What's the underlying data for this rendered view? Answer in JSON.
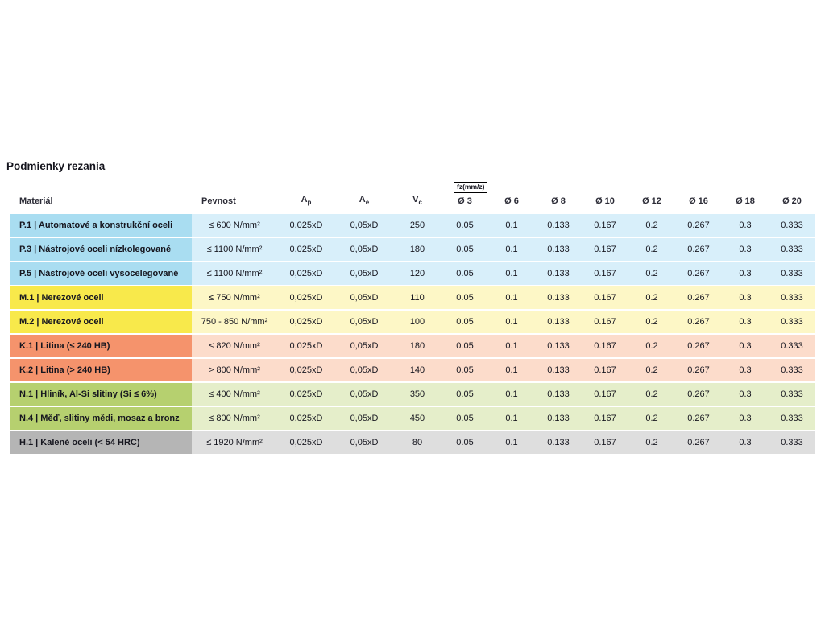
{
  "page": {
    "title": "Podmienky rezania"
  },
  "colors": {
    "group_p_label": "#a9ddf1",
    "group_p_body": "#d8effa",
    "group_m_label": "#f8e94b",
    "group_m_body": "#fdf7c6",
    "group_k_label": "#f5936c",
    "group_k_body": "#fcdccb",
    "group_n_label": "#b6d06f",
    "group_n_body": "#e5eeca",
    "group_h_label": "#b5b5b5",
    "group_h_body": "#dedede",
    "text": "#16161f"
  },
  "table": {
    "headers": {
      "material": "Materiál",
      "pevnost": "Pevnost",
      "ap": {
        "base": "A",
        "sub": "p"
      },
      "ae": {
        "base": "A",
        "sub": "e"
      },
      "vc": {
        "base": "V",
        "sub": "c"
      },
      "fz_label": "fz(mm/z)",
      "diameters": [
        "Ø 3",
        "Ø 6",
        "Ø 8",
        "Ø 10",
        "Ø 12",
        "Ø 16",
        "Ø 18",
        "Ø 20"
      ]
    },
    "rows": [
      {
        "group": "P",
        "material": "P.1 | Automatové a konstrukční oceli",
        "pevnost": "≤ 600 N/mm²",
        "ap": "0,025xD",
        "ae": "0,05xD",
        "vc": "250",
        "feeds": [
          "0.05",
          "0.1",
          "0.133",
          "0.167",
          "0.2",
          "0.267",
          "0.3",
          "0.333"
        ]
      },
      {
        "group": "P",
        "material": "P.3 | Nástrojové oceli nízkolegované",
        "pevnost": "≤ 1100 N/mm²",
        "ap": "0,025xD",
        "ae": "0,05xD",
        "vc": "180",
        "feeds": [
          "0.05",
          "0.1",
          "0.133",
          "0.167",
          "0.2",
          "0.267",
          "0.3",
          "0.333"
        ]
      },
      {
        "group": "P",
        "material": "P.5 | Nástrojové oceli vysocelegované",
        "pevnost": "≤ 1100 N/mm²",
        "ap": "0,025xD",
        "ae": "0,05xD",
        "vc": "120",
        "feeds": [
          "0.05",
          "0.1",
          "0.133",
          "0.167",
          "0.2",
          "0.267",
          "0.3",
          "0.333"
        ]
      },
      {
        "group": "M",
        "material": "M.1 | Nerezové oceli",
        "pevnost": "≤ 750 N/mm²",
        "ap": "0,025xD",
        "ae": "0,05xD",
        "vc": "110",
        "feeds": [
          "0.05",
          "0.1",
          "0.133",
          "0.167",
          "0.2",
          "0.267",
          "0.3",
          "0.333"
        ]
      },
      {
        "group": "M",
        "material": "M.2 | Nerezové oceli",
        "pevnost": "750 - 850 N/mm²",
        "ap": "0,025xD",
        "ae": "0,05xD",
        "vc": "100",
        "feeds": [
          "0.05",
          "0.1",
          "0.133",
          "0.167",
          "0.2",
          "0.267",
          "0.3",
          "0.333"
        ]
      },
      {
        "group": "K",
        "material": "K.1 | Litina (≤ 240 HB)",
        "pevnost": "≤ 820 N/mm²",
        "ap": "0,025xD",
        "ae": "0,05xD",
        "vc": "180",
        "feeds": [
          "0.05",
          "0.1",
          "0.133",
          "0.167",
          "0.2",
          "0.267",
          "0.3",
          "0.333"
        ]
      },
      {
        "group": "K",
        "material": "K.2 | Litina (> 240 HB)",
        "pevnost": "> 800 N/mm²",
        "ap": "0,025xD",
        "ae": "0,05xD",
        "vc": "140",
        "feeds": [
          "0.05",
          "0.1",
          "0.133",
          "0.167",
          "0.2",
          "0.267",
          "0.3",
          "0.333"
        ]
      },
      {
        "group": "N",
        "material": "N.1 | Hliník, Al-Si slitiny (Si ≤ 6%)",
        "pevnost": "≤ 400 N/mm²",
        "ap": "0,025xD",
        "ae": "0,05xD",
        "vc": "350",
        "feeds": [
          "0.05",
          "0.1",
          "0.133",
          "0.167",
          "0.2",
          "0.267",
          "0.3",
          "0.333"
        ]
      },
      {
        "group": "N",
        "material": "N.4 | Měď, slitiny mědi, mosaz a bronz",
        "pevnost": "≤ 800 N/mm²",
        "ap": "0,025xD",
        "ae": "0,05xD",
        "vc": "450",
        "feeds": [
          "0.05",
          "0.1",
          "0.133",
          "0.167",
          "0.2",
          "0.267",
          "0.3",
          "0.333"
        ]
      },
      {
        "group": "H",
        "material": "H.1 | Kalené oceli (< 54 HRC)",
        "pevnost": "≤ 1920 N/mm²",
        "ap": "0,025xD",
        "ae": "0,05xD",
        "vc": "80",
        "feeds": [
          "0.05",
          "0.1",
          "0.133",
          "0.167",
          "0.2",
          "0.267",
          "0.3",
          "0.333"
        ]
      }
    ]
  }
}
